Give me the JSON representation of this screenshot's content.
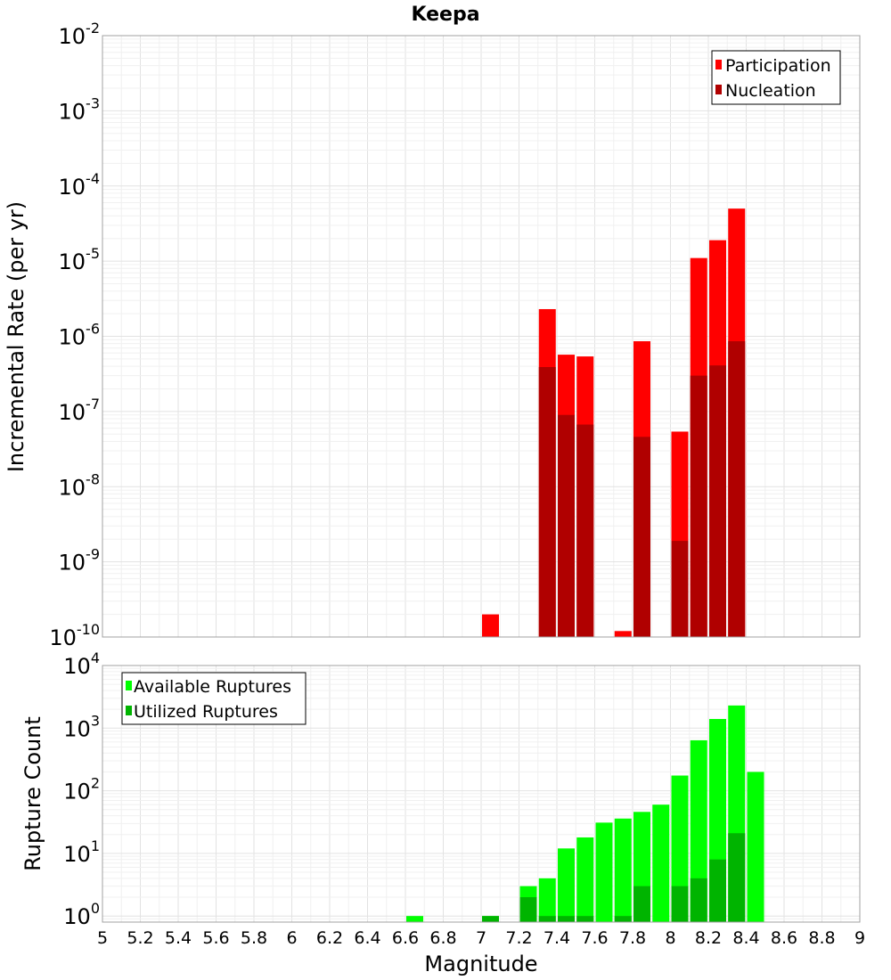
{
  "title": "Keepa",
  "x_axis_label": "Magnitude",
  "x_ticks": [
    "5",
    "5.2",
    "5.4",
    "5.6",
    "5.8",
    "6",
    "6.2",
    "6.4",
    "6.6",
    "6.8",
    "7",
    "7.2",
    "7.4",
    "7.6",
    "7.8",
    "8",
    "8.2",
    "8.4",
    "8.6",
    "8.8",
    "9"
  ],
  "chart_data": [
    {
      "type": "bar",
      "title": "Keepa",
      "ylabel": "Incremental Rate (per yr)",
      "xlabel": "Magnitude",
      "xlim": [
        5,
        9
      ],
      "ylim": [
        1e-10,
        0.01
      ],
      "y_scale": "log",
      "grid": true,
      "legend_position": "top-right",
      "y_tick_exponents": [
        "-2",
        "-3",
        "-4",
        "-5",
        "-6",
        "-7",
        "-8",
        "-9",
        "-10"
      ],
      "y_tick_base": "10",
      "series": [
        {
          "name": "Participation",
          "color": "#ff0000",
          "x": [
            7.05,
            7.35,
            7.45,
            7.55,
            7.75,
            7.85,
            8.05,
            8.15,
            8.25,
            8.35
          ],
          "values": [
            2e-10,
            2.3e-06,
            5.7e-07,
            5.4e-07,
            1.2e-10,
            8.6e-07,
            5.4e-08,
            1.1e-05,
            1.9e-05,
            5e-05
          ]
        },
        {
          "name": "Nucleation",
          "color": "#b00000",
          "x": [
            7.35,
            7.45,
            7.55,
            7.85,
            8.05,
            8.15,
            8.25,
            8.35
          ],
          "values": [
            3.9e-07,
            9e-08,
            6.7e-08,
            4.6e-08,
            1.9e-09,
            3e-07,
            4.1e-07,
            8.6e-07
          ]
        }
      ]
    },
    {
      "type": "bar",
      "ylabel": "Rupture Count",
      "xlabel": "Magnitude",
      "xlim": [
        5,
        9
      ],
      "ylim": [
        0.8,
        10000
      ],
      "y_scale": "log",
      "grid": true,
      "legend_position": "top-left",
      "y_tick_exponents": [
        "4",
        "3",
        "2",
        "1",
        "0"
      ],
      "y_tick_base": "10",
      "series": [
        {
          "name": "Available Ruptures",
          "color": "#00ff00",
          "x": [
            6.65,
            7.05,
            7.25,
            7.35,
            7.45,
            7.55,
            7.65,
            7.75,
            7.85,
            7.95,
            8.05,
            8.15,
            8.25,
            8.35,
            8.45
          ],
          "values": [
            1,
            1,
            3,
            4,
            12,
            18,
            31,
            36,
            46,
            60,
            175,
            640,
            1400,
            2300,
            200
          ]
        },
        {
          "name": "Utilized Ruptures",
          "color": "#00b400",
          "x": [
            7.05,
            7.25,
            7.35,
            7.45,
            7.55,
            7.75,
            7.85,
            8.05,
            8.15,
            8.25,
            8.35
          ],
          "values": [
            1,
            2,
            1,
            1,
            1,
            1,
            3,
            3,
            4,
            8,
            21
          ]
        }
      ]
    }
  ]
}
